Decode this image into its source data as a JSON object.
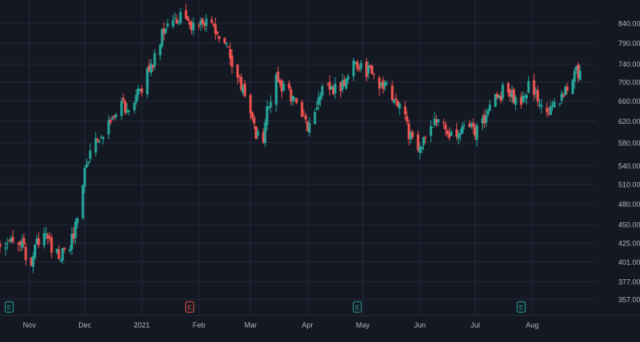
{
  "chart_data": {
    "type": "candlestick",
    "title": "",
    "xlabel": "",
    "ylabel": "",
    "y_scale": "log",
    "ylim": [
      343,
      885
    ],
    "grid": true,
    "price_axis_ticks": [
      "840.00",
      "790.00",
      "740.00",
      "700.00",
      "660.00",
      "620.00",
      "580.00",
      "540.00",
      "510.00",
      "480.00",
      "450.00",
      "425.00",
      "401.00",
      "377.00",
      "357.00"
    ],
    "time_axis_labels": [
      {
        "label": "Nov",
        "date": "2020-11-01"
      },
      {
        "label": "Dec",
        "date": "2020-12-01"
      },
      {
        "label": "2021",
        "date": "2021-01-01"
      },
      {
        "label": "Feb",
        "date": "2021-02-01"
      },
      {
        "label": "Mar",
        "date": "2021-03-01"
      },
      {
        "label": "Apr",
        "date": "2021-04-01"
      },
      {
        "label": "May",
        "date": "2021-05-01"
      },
      {
        "label": "Jun",
        "date": "2021-06-01"
      },
      {
        "label": "Jul",
        "date": "2021-07-01"
      },
      {
        "label": "Aug",
        "date": "2021-08-01"
      }
    ],
    "event_markers": [
      {
        "label": "E",
        "date": "2020-10-21",
        "color": "#26a69a"
      },
      {
        "label": "E",
        "date": "2021-01-27",
        "color": "#ef5350"
      },
      {
        "label": "E",
        "date": "2021-04-28",
        "color": "#26a69a"
      },
      {
        "label": "E",
        "date": "2021-07-26",
        "color": "#26a69a"
      }
    ],
    "colors": {
      "up": "#26a69a",
      "down": "#ef5350",
      "background": "#141823",
      "grid": "#232838",
      "axis_text": "#b2b5be"
    },
    "close_path": [
      [
        "2020-10-16",
        420
      ],
      [
        "2020-10-26",
        430
      ],
      [
        "2020-11-02",
        395
      ],
      [
        "2020-11-05",
        425
      ],
      [
        "2020-11-10",
        445
      ],
      [
        "2020-11-13",
        418
      ],
      [
        "2020-11-19",
        410
      ],
      [
        "2020-11-22",
        410
      ],
      [
        "2020-11-27",
        460
      ],
      [
        "2020-12-01",
        535
      ],
      [
        "2020-12-06",
        585
      ],
      [
        "2020-12-10",
        600
      ],
      [
        "2020-12-15",
        612
      ],
      [
        "2020-12-21",
        655
      ],
      [
        "2020-12-26",
        640
      ],
      [
        "2020-12-31",
        680
      ],
      [
        "2021-01-08",
        755
      ],
      [
        "2021-01-12",
        820
      ],
      [
        "2021-01-16",
        855
      ],
      [
        "2021-01-24",
        850
      ],
      [
        "2021-01-28",
        815
      ],
      [
        "2021-02-02",
        860
      ],
      [
        "2021-02-05",
        850
      ],
      [
        "2021-02-10",
        815
      ],
      [
        "2021-02-15",
        790
      ],
      [
        "2021-02-19",
        740
      ],
      [
        "2021-02-24",
        690
      ],
      [
        "2021-02-27",
        650
      ],
      [
        "2021-03-04",
        600
      ],
      [
        "2021-03-07",
        570
      ],
      [
        "2021-03-10",
        640
      ],
      [
        "2021-03-15",
        700
      ],
      [
        "2021-03-20",
        685
      ],
      [
        "2021-03-25",
        660
      ],
      [
        "2021-03-30",
        630
      ],
      [
        "2021-04-03",
        600
      ],
      [
        "2021-04-06",
        650
      ],
      [
        "2021-04-09",
        700
      ],
      [
        "2021-04-14",
        685
      ],
      [
        "2021-04-21",
        700
      ],
      [
        "2021-04-26",
        755
      ],
      [
        "2021-04-30",
        730
      ],
      [
        "2021-05-05",
        720
      ],
      [
        "2021-05-10",
        700
      ],
      [
        "2021-05-15",
        680
      ],
      [
        "2021-05-21",
        650
      ],
      [
        "2021-05-26",
        600
      ],
      [
        "2021-06-01",
        575
      ],
      [
        "2021-06-06",
        600
      ],
      [
        "2021-06-11",
        625
      ],
      [
        "2021-06-16",
        600
      ],
      [
        "2021-06-21",
        580
      ],
      [
        "2021-06-26",
        610
      ],
      [
        "2021-07-01",
        600
      ],
      [
        "2021-07-06",
        620
      ],
      [
        "2021-07-12",
        665
      ],
      [
        "2021-07-19",
        690
      ],
      [
        "2021-07-24",
        650
      ],
      [
        "2021-07-30",
        690
      ],
      [
        "2021-08-04",
        665
      ],
      [
        "2021-08-09",
        640
      ],
      [
        "2021-08-15",
        650
      ],
      [
        "2021-08-19",
        690
      ],
      [
        "2021-08-24",
        725
      ],
      [
        "2021-08-28",
        720
      ]
    ]
  }
}
